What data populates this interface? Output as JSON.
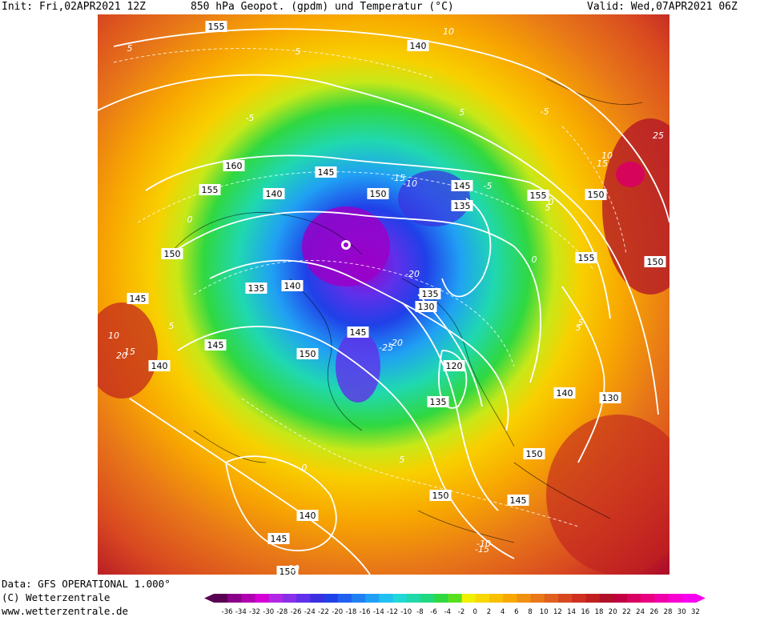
{
  "header": {
    "init": "Init: Fri,02APR2021 12Z",
    "title": "850 hPa Geopot. (gpdm) und Temperatur (°C)",
    "valid": "Valid: Wed,07APR2021 06Z"
  },
  "footer": {
    "data_source": "Data: GFS OPERATIONAL 1.000°",
    "copyright": "(C) Wetterzentrale",
    "website": "www.wetterzentrale.de"
  },
  "colorscale": {
    "ticks": [
      "-36",
      "-34",
      "-32",
      "-30",
      "-28",
      "-26",
      "-24",
      "-22",
      "-20",
      "-18",
      "-16",
      "-14",
      "-12",
      "-10",
      "-8",
      "-6",
      "-4",
      "-2",
      "0",
      "2",
      "4",
      "6",
      "8",
      "10",
      "12",
      "14",
      "16",
      "18",
      "20",
      "22",
      "24",
      "26",
      "28",
      "30",
      "32"
    ],
    "colors": [
      "#5a0052",
      "#8a0088",
      "#b000b0",
      "#d400d4",
      "#b028e6",
      "#8830e8",
      "#6030ea",
      "#3a30e0",
      "#2040e8",
      "#2060ee",
      "#2080f2",
      "#20a0f4",
      "#20c0f2",
      "#20d8d8",
      "#20d8a8",
      "#20d880",
      "#30d840",
      "#58e020",
      "#f0f000",
      "#f8d800",
      "#f8c000",
      "#f8a800",
      "#f09010",
      "#e87818",
      "#e06020",
      "#d84820",
      "#d03020",
      "#c02020",
      "#b01028",
      "#c00040",
      "#d80060",
      "#e80080",
      "#f000a8",
      "#f800d0",
      "#f800f0"
    ]
  },
  "map_labels": {
    "geopotential": [
      "155",
      "140",
      "160",
      "155",
      "145",
      "150",
      "145",
      "140",
      "135",
      "155",
      "150",
      "150",
      "135",
      "155",
      "150",
      "140",
      "145",
      "145",
      "150",
      "145",
      "140",
      "120",
      "130",
      "135",
      "140",
      "150",
      "135",
      "150",
      "145",
      "140",
      "145",
      "150",
      "130"
    ],
    "temperature": [
      "10",
      "5",
      "-5",
      "5",
      "0",
      "-10",
      "-15",
      "-20",
      "-25",
      "-5",
      "0",
      "5",
      "5",
      "10",
      "15",
      "-5",
      "0",
      "5",
      "10",
      "15",
      "25",
      "20",
      "-15",
      "-10",
      "0",
      "-20",
      "10",
      "5",
      "5",
      "5"
    ]
  }
}
